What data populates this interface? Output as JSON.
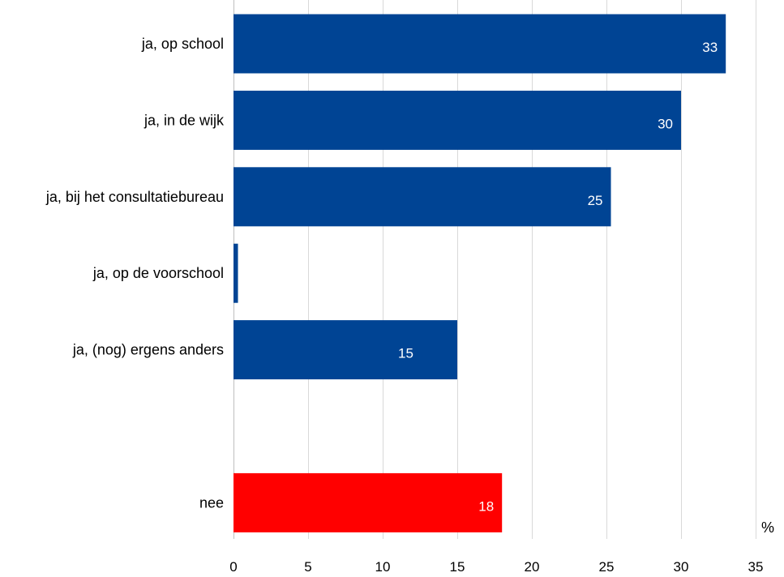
{
  "chart_data": {
    "type": "bar",
    "orientation": "horizontal",
    "categories": [
      "ja, op school",
      "ja, in de wijk",
      "ja, bij het consultatiebureau",
      "ja, op de voorschool",
      "ja, (nog) ergens anders",
      "",
      "nee"
    ],
    "values": [
      33,
      30,
      25.3,
      0.3,
      15,
      null,
      18
    ],
    "data_labels": [
      "33",
      "30",
      "25",
      "",
      "15",
      "",
      "18"
    ],
    "bar_colors": [
      "#004494",
      "#004494",
      "#004494",
      "#004494",
      "#004494",
      null,
      "#ff0000"
    ],
    "xlim": [
      0,
      35
    ],
    "xticks": [
      0,
      5,
      10,
      15,
      20,
      25,
      30,
      35
    ],
    "unit_label": "%",
    "grid": true,
    "legend": "none",
    "title": "",
    "xlabel": "",
    "ylabel": ""
  }
}
